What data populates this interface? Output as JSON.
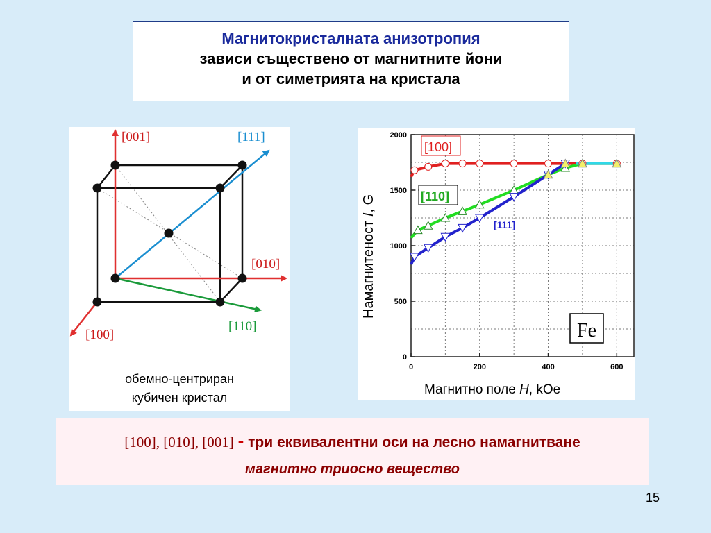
{
  "title": {
    "line1": "Магнитокристалната анизотропия",
    "line2": "зависи съществено от магнитните йони",
    "line3": "и от симетрията на кристала"
  },
  "cube": {
    "axes": {
      "a001": "[001]",
      "a111": "[111]",
      "a010": "[010]",
      "a110": "[110]",
      "a100": "[100]"
    },
    "caption_line1": "обемно-центриран",
    "caption_line2": "кубичен кристал"
  },
  "bottom": {
    "axes_text": "[100], [010], [001]",
    "dash": "-",
    "text": "три еквивалентни оси на лесно намагнитване",
    "line2": "магнитно триосно вещество"
  },
  "page_number": "15",
  "chart_data": {
    "type": "line",
    "xlabel_text": "Магнитно поле",
    "xlabel_var": "H",
    "xlabel_unit": ", kOe",
    "ylabel_text": "Намагнитеност",
    "ylabel_var": "I",
    "ylabel_unit": ", G",
    "xlim": [
      0,
      650
    ],
    "ylim": [
      0,
      2000
    ],
    "xticks": [
      0,
      200,
      400,
      600
    ],
    "yticks": [
      0,
      500,
      1000,
      1500,
      2000
    ],
    "grid": true,
    "material_label": "Fe",
    "series": [
      {
        "name": "[100]",
        "color": "#e02020",
        "marker": "circle",
        "x": [
          0,
          10,
          50,
          100,
          150,
          200,
          300,
          400,
          450,
          500,
          600
        ],
        "y": [
          1620,
          1680,
          1710,
          1740,
          1740,
          1740,
          1740,
          1740,
          1740,
          1740,
          1740
        ]
      },
      {
        "name": "[110]",
        "color": "#22dd22",
        "marker": "triangle-up",
        "x": [
          0,
          20,
          50,
          100,
          150,
          200,
          300,
          400,
          450,
          500,
          600
        ],
        "y": [
          1070,
          1140,
          1180,
          1250,
          1310,
          1370,
          1500,
          1640,
          1700,
          1740,
          1740
        ]
      },
      {
        "name": "[111]",
        "color": "#2222cc",
        "marker": "triangle-down",
        "x": [
          0,
          10,
          50,
          100,
          150,
          200,
          300,
          400,
          450
        ],
        "y": [
          830,
          900,
          980,
          1080,
          1160,
          1250,
          1440,
          1640,
          1740
        ]
      },
      {
        "name": "",
        "color": "#30d8e8",
        "marker": "none",
        "x": [
          480,
          600
        ],
        "y": [
          1740,
          1740
        ]
      }
    ]
  }
}
